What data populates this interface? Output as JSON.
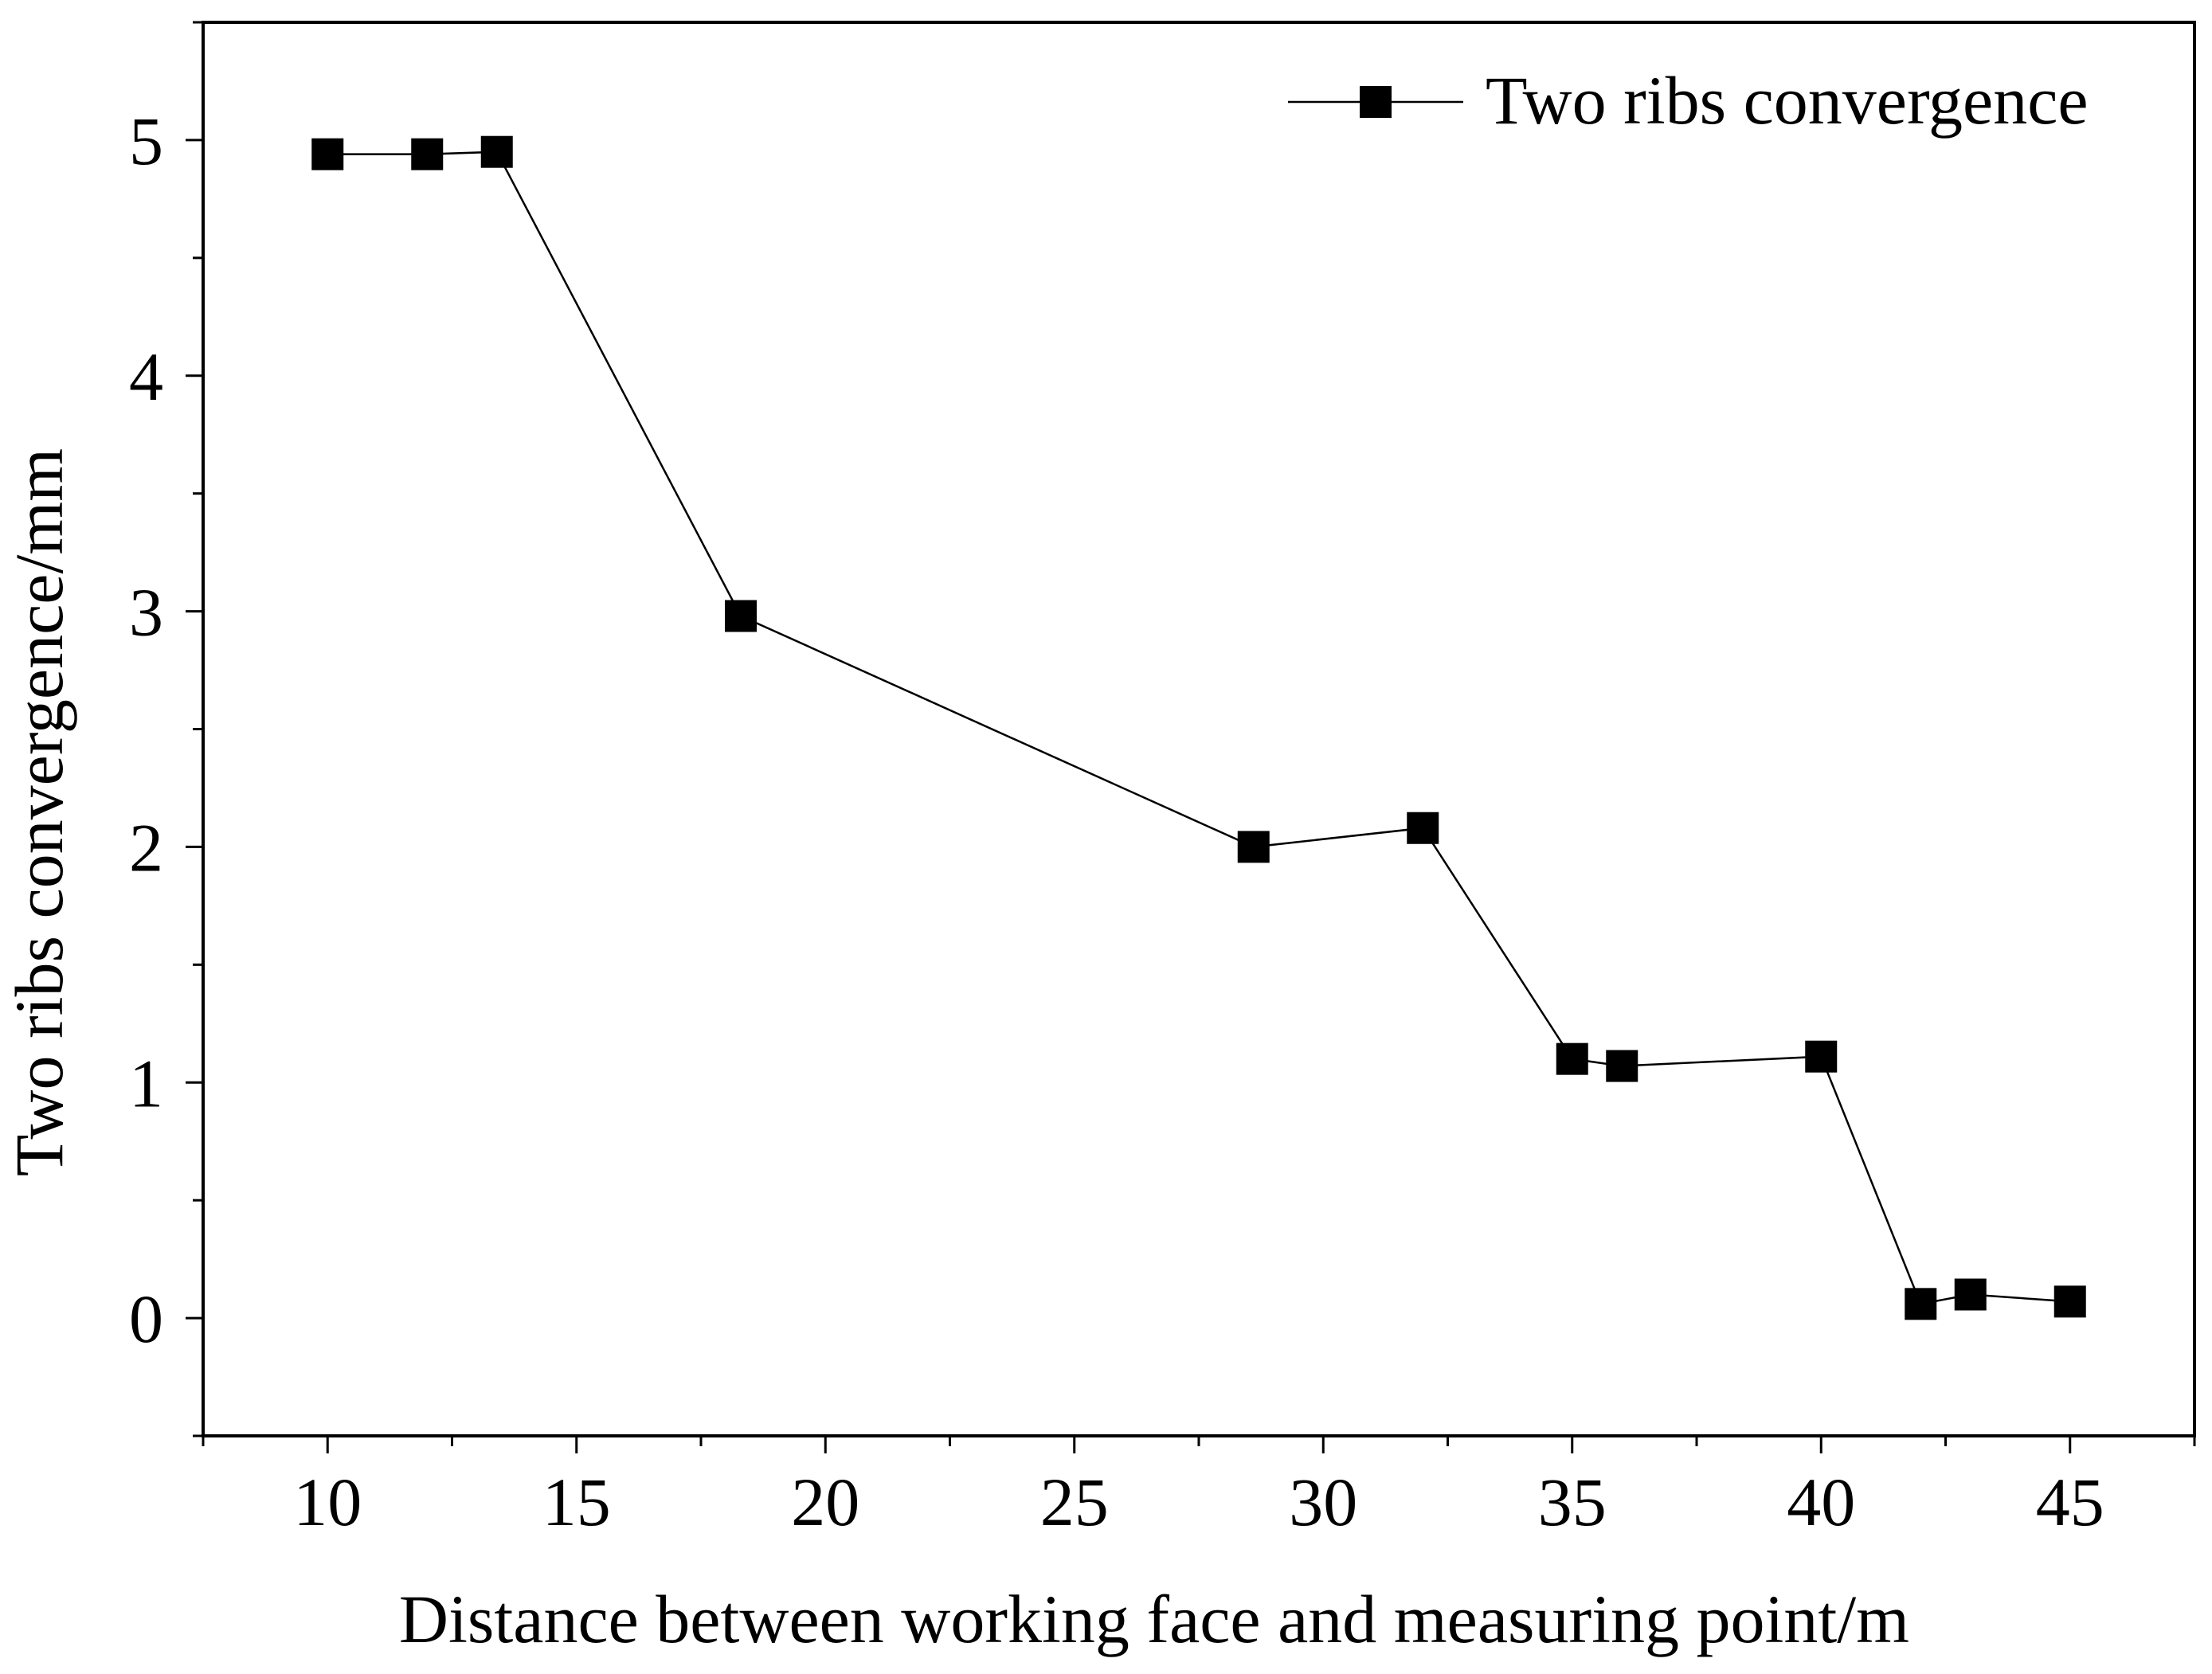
{
  "chart_data": {
    "type": "line",
    "title": "",
    "xlabel": "Distance between working face and measuring point/m",
    "ylabel": "Two ribs convergence/mm",
    "xlim": [
      7.5,
      47.5
    ],
    "ylim": [
      -0.5,
      5.5
    ],
    "x_ticks": [
      10,
      15,
      20,
      25,
      30,
      35,
      40,
      45
    ],
    "x_tick_labels": [
      "10",
      "15",
      "20",
      "25",
      "30",
      "35",
      "40",
      "45"
    ],
    "y_ticks": [
      0,
      1,
      2,
      3,
      4,
      5
    ],
    "y_tick_labels": [
      "0",
      "1",
      "2",
      "3",
      "4",
      "5"
    ],
    "grid": false,
    "legend_position": "top-right",
    "series": [
      {
        "name": "Two ribs convergence",
        "marker": "square",
        "color": "#000000",
        "x": [
          10,
          12,
          13.4,
          18.3,
          28.6,
          32,
          35,
          36,
          40,
          42,
          43,
          45
        ],
        "y": [
          4.94,
          4.94,
          4.95,
          2.98,
          2.0,
          2.08,
          1.1,
          1.07,
          1.11,
          0.06,
          0.1,
          0.07
        ]
      }
    ]
  }
}
